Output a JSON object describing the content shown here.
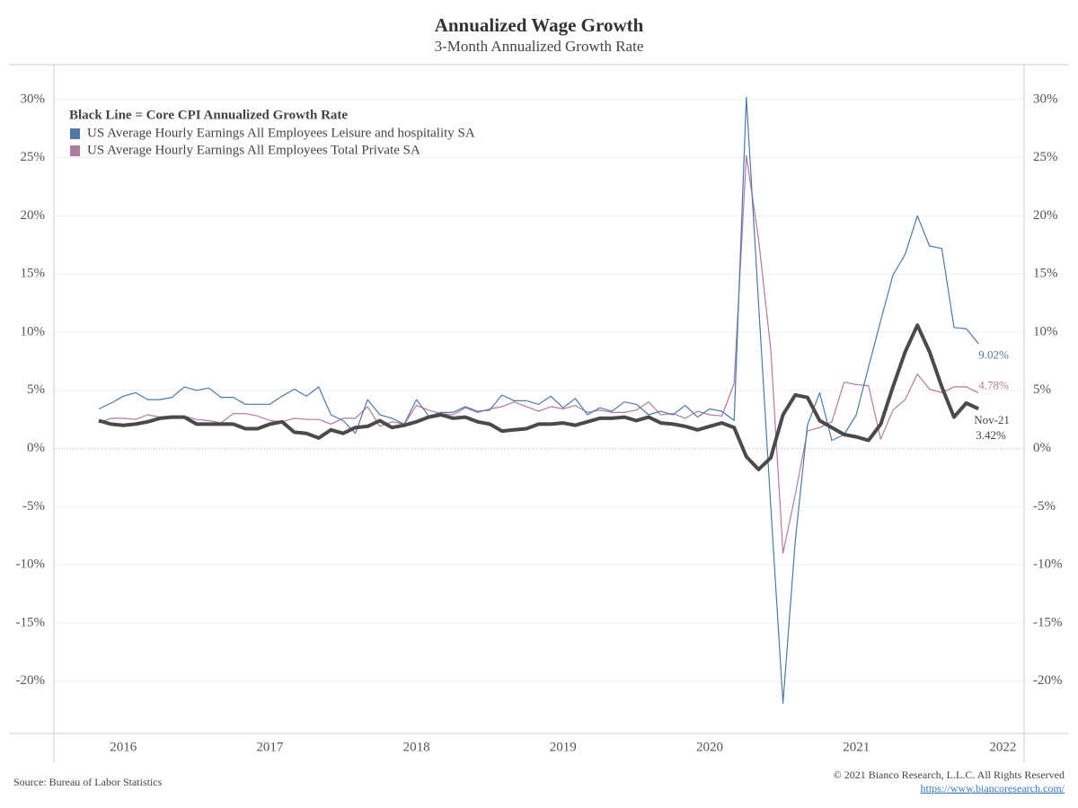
{
  "chart_data": {
    "type": "line",
    "title": "Annualized Wage Growth",
    "subtitle": "3-Month Annualized Growth Rate",
    "legend_title": "Black Line = Core CPI Annualized Growth Rate",
    "legend": "top-left",
    "grid": true,
    "categories": [
      null,
      null,
      "2016",
      null,
      null,
      null,
      null,
      null,
      null,
      null,
      null,
      null,
      null,
      null,
      "2017",
      null,
      null,
      null,
      null,
      null,
      null,
      null,
      null,
      null,
      null,
      null,
      "2018",
      null,
      null,
      null,
      null,
      null,
      null,
      null,
      null,
      null,
      null,
      null,
      "2019",
      null,
      null,
      null,
      null,
      null,
      null,
      null,
      null,
      null,
      null,
      null,
      "2020",
      null,
      null,
      null,
      null,
      null,
      null,
      null,
      null,
      null,
      null,
      null,
      "2021",
      null,
      null,
      null,
      null,
      null,
      null,
      null,
      null,
      null,
      null,
      null,
      "2022"
    ],
    "series": [
      {
        "name": "US Average Hourly Earnings All Employees Leisure and hospitality SA",
        "color": "#4e79a7",
        "line_width": 1.2,
        "values": [
          3.4,
          3.9,
          4.5,
          4.8,
          4.2,
          4.2,
          4.4,
          5.3,
          5.0,
          5.2,
          4.4,
          4.4,
          3.8,
          3.8,
          3.8,
          4.5,
          5.1,
          4.5,
          5.3,
          2.9,
          2.4,
          1.3,
          4.2,
          2.9,
          2.6,
          2.1,
          4.2,
          2.8,
          3.1,
          3.1,
          3.6,
          3.2,
          3.3,
          4.6,
          4.1,
          4.1,
          3.8,
          4.5,
          3.5,
          4.3,
          2.9,
          3.5,
          3.2,
          4.0,
          3.8,
          2.9,
          3.2,
          2.9,
          3.7,
          2.7,
          3.4,
          3.2,
          2.4,
          30.2,
          12.5,
          -5,
          -21.9,
          -8,
          2.0,
          4.8,
          0.7,
          1.2,
          2.9,
          7,
          11,
          14.9,
          16.7,
          20.0,
          17.4,
          17.2,
          10.4,
          10.3,
          9.02,
          null,
          null
        ],
        "value_labels": [
          null,
          null,
          null,
          null,
          null,
          null,
          null,
          null,
          null,
          null,
          null,
          null,
          null,
          null,
          null,
          null,
          null,
          null,
          null,
          null,
          null,
          null,
          null,
          null,
          null,
          null,
          null,
          null,
          null,
          null,
          null,
          null,
          null,
          null,
          null,
          null,
          null,
          null,
          null,
          null,
          null,
          null,
          null,
          null,
          null,
          null,
          null,
          null,
          null,
          null,
          null,
          null,
          null,
          null,
          null,
          null,
          null,
          null,
          null,
          null,
          null,
          null,
          null,
          null,
          null,
          null,
          null,
          null,
          null,
          null,
          null,
          null,
          "9.02%",
          null,
          null
        ]
      },
      {
        "name": "US Average Hourly Earnings All Employees Total Private SA",
        "color": "#b07aa1",
        "line_width": 1.2,
        "values": [
          2.2,
          2.6,
          2.6,
          2.5,
          2.9,
          2.7,
          2.8,
          2.8,
          2.5,
          2.4,
          2.2,
          3.0,
          3.0,
          2.8,
          2.4,
          2.3,
          2.6,
          2.5,
          2.5,
          2.1,
          2.6,
          2.6,
          3.6,
          1.9,
          2.3,
          2.1,
          3.7,
          3.3,
          3.0,
          2.9,
          3.5,
          3.1,
          3.4,
          3.6,
          4.0,
          3.6,
          3.2,
          3.6,
          3.4,
          3.7,
          3.1,
          3.3,
          3.1,
          3.1,
          3.3,
          4.0,
          2.9,
          3.0,
          2.6,
          3.2,
          2.9,
          2.8,
          5.6,
          25.2,
          18,
          8.5,
          -9.0,
          -4,
          1.5,
          1.8,
          2.3,
          5.7,
          5.5,
          5.4,
          0.8,
          3.3,
          4.2,
          6.4,
          5.1,
          4.8,
          5.3,
          5.3,
          4.78,
          null,
          null
        ],
        "value_labels": [
          null,
          null,
          null,
          null,
          null,
          null,
          null,
          null,
          null,
          null,
          null,
          null,
          null,
          null,
          null,
          null,
          null,
          null,
          null,
          null,
          null,
          null,
          null,
          null,
          null,
          null,
          null,
          null,
          null,
          null,
          null,
          null,
          null,
          null,
          null,
          null,
          null,
          null,
          null,
          null,
          null,
          null,
          null,
          null,
          null,
          null,
          null,
          null,
          null,
          null,
          null,
          null,
          null,
          null,
          null,
          null,
          null,
          null,
          null,
          null,
          null,
          null,
          null,
          null,
          null,
          null,
          null,
          null,
          null,
          null,
          null,
          null,
          "4.78%",
          null,
          null
        ]
      },
      {
        "color": "#4a4a4a",
        "line_width": 4,
        "values": [
          2.4,
          2.1,
          2.0,
          2.1,
          2.3,
          2.6,
          2.7,
          2.7,
          2.1,
          2.1,
          2.1,
          2.1,
          1.7,
          1.7,
          2.1,
          2.3,
          1.4,
          1.3,
          0.9,
          1.6,
          1.3,
          1.8,
          1.9,
          2.4,
          1.8,
          2.0,
          2.3,
          2.7,
          2.9,
          2.6,
          2.7,
          2.3,
          2.1,
          1.5,
          1.6,
          1.7,
          2.1,
          2.1,
          2.2,
          2.0,
          2.3,
          2.6,
          2.6,
          2.7,
          2.4,
          2.7,
          2.2,
          2.1,
          1.9,
          1.6,
          1.9,
          2.2,
          1.8,
          -0.7,
          -1.8,
          -0.8,
          2.9,
          4.6,
          4.4,
          2.4,
          1.8,
          1.2,
          1.0,
          0.7,
          2.1,
          5.3,
          8.3,
          10.6,
          8.3,
          5.3,
          2.7,
          3.9,
          3.42,
          null,
          null
        ],
        "value_labels": [
          null,
          null,
          null,
          null,
          null,
          null,
          null,
          null,
          null,
          null,
          null,
          null,
          null,
          null,
          null,
          null,
          null,
          null,
          null,
          null,
          null,
          null,
          null,
          null,
          null,
          null,
          null,
          null,
          null,
          null,
          null,
          null,
          null,
          null,
          null,
          null,
          null,
          null,
          null,
          null,
          null,
          null,
          null,
          null,
          null,
          null,
          null,
          null,
          null,
          null,
          null,
          null,
          null,
          null,
          null,
          null,
          null,
          null,
          null,
          null,
          null,
          null,
          null,
          null,
          null,
          null,
          null,
          null,
          null,
          null,
          null,
          null,
          "3.42%",
          null,
          null
        ]
      }
    ],
    "end_annotation": "Nov-21",
    "ylim": [
      -24.5,
      33
    ],
    "yticks": [
      {
        "value": -20,
        "label": "-20%"
      },
      {
        "value": -15,
        "label": "-15%"
      },
      {
        "value": -10,
        "label": "-10%"
      },
      {
        "value": -5,
        "label": "-5%"
      },
      {
        "value": 0,
        "label": "0%"
      },
      {
        "value": 5,
        "label": "5%"
      },
      {
        "value": 10,
        "label": "10%"
      },
      {
        "value": 15,
        "label": "15%"
      },
      {
        "value": 20,
        "label": "20%"
      },
      {
        "value": 25,
        "label": "25%"
      },
      {
        "value": 30,
        "label": "30%"
      }
    ],
    "source": "Source: Bureau of Labor Statistics",
    "copyright": "© 2021 Bianco Research, L.L.C. All Rights Reserved",
    "url": "https://www.biancoresearch.com/"
  }
}
